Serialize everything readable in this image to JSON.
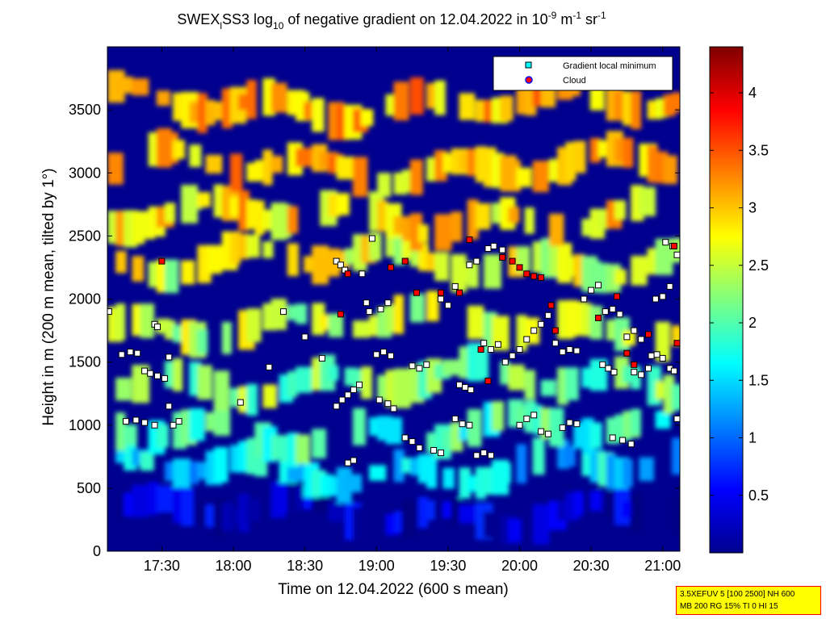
{
  "chart_data": {
    "type": "heatmap",
    "title_parts": {
      "pre": "SWEX",
      "sub1": "l",
      "mid": "SS3 log",
      "sub2": "10",
      "post": " of negative gradient on 12.04.2022 in 10",
      "sup1": "-9",
      "unit1": " m",
      "sup2": "-1",
      "unit2": " sr",
      "sup3": "-1"
    },
    "xlabel": "Time on 12.04.2022 (600 s mean)",
    "ylabel": "Height in m (200 m mean, tilted by 1°)",
    "x_ticks": [
      "17:30",
      "18:00",
      "18:30",
      "19:00",
      "19:30",
      "20:00",
      "20:30",
      "21:00"
    ],
    "x_range_hours": [
      17.12,
      21.12
    ],
    "y_ticks": [
      0,
      500,
      1000,
      1500,
      2000,
      2500,
      3000,
      3500
    ],
    "ylim": [
      0,
      4000
    ],
    "colorbar": {
      "ticks": [
        0.5,
        1,
        1.5,
        2,
        2.5,
        3,
        3.5,
        4
      ],
      "range": [
        0,
        4.4
      ],
      "colormap": "jet"
    },
    "legend": {
      "placement": "top-right",
      "entries": [
        {
          "label": "Gradient local minimum",
          "marker": "square",
          "color": "#00ffff"
        },
        {
          "label": "Cloud",
          "marker": "circle",
          "color": "#ff0000"
        }
      ]
    },
    "layers": [
      {
        "height": 300,
        "value": 0.3
      },
      {
        "height": 650,
        "value": 1.5
      },
      {
        "height": 950,
        "value": 1.9
      },
      {
        "height": 1350,
        "value": 2.2
      },
      {
        "height": 1800,
        "value": 2.5
      },
      {
        "height": 2300,
        "value": 2.6
      },
      {
        "height": 2650,
        "value": 2.9
      },
      {
        "height": 3050,
        "value": 3.0
      },
      {
        "height": 3550,
        "value": 3.1
      }
    ],
    "gradient_minima": [
      {
        "t": 17.13,
        "h": 1900
      },
      {
        "t": 17.22,
        "h": 1560
      },
      {
        "t": 17.28,
        "h": 1580
      },
      {
        "t": 17.33,
        "h": 1570
      },
      {
        "t": 17.25,
        "h": 1030
      },
      {
        "t": 17.32,
        "h": 1040
      },
      {
        "t": 17.38,
        "h": 1020
      },
      {
        "t": 17.45,
        "h": 1000
      },
      {
        "t": 17.38,
        "h": 1430
      },
      {
        "t": 17.42,
        "h": 1410
      },
      {
        "t": 17.47,
        "h": 1390
      },
      {
        "t": 17.52,
        "h": 1370
      },
      {
        "t": 17.45,
        "h": 1800
      },
      {
        "t": 17.47,
        "h": 1780
      },
      {
        "t": 17.55,
        "h": 1540
      },
      {
        "t": 17.55,
        "h": 1150
      },
      {
        "t": 17.58,
        "h": 1000
      },
      {
        "t": 17.62,
        "h": 1030
      },
      {
        "t": 18.72,
        "h": 2300
      },
      {
        "t": 18.75,
        "h": 2270
      },
      {
        "t": 18.78,
        "h": 2230
      },
      {
        "t": 18.72,
        "h": 1150
      },
      {
        "t": 18.76,
        "h": 1200
      },
      {
        "t": 18.8,
        "h": 1240
      },
      {
        "t": 18.84,
        "h": 1280
      },
      {
        "t": 18.88,
        "h": 1320
      },
      {
        "t": 18.8,
        "h": 700
      },
      {
        "t": 18.84,
        "h": 720
      },
      {
        "t": 18.9,
        "h": 2200
      },
      {
        "t": 18.93,
        "h": 1970
      },
      {
        "t": 18.95,
        "h": 1900
      },
      {
        "t": 19.0,
        "h": 1560
      },
      {
        "t": 19.05,
        "h": 1580
      },
      {
        "t": 19.1,
        "h": 1550
      },
      {
        "t": 19.02,
        "h": 1200
      },
      {
        "t": 19.08,
        "h": 1170
      },
      {
        "t": 19.12,
        "h": 1130
      },
      {
        "t": 18.97,
        "h": 2480
      },
      {
        "t": 19.03,
        "h": 1920
      },
      {
        "t": 19.08,
        "h": 1970
      },
      {
        "t": 19.25,
        "h": 1470
      },
      {
        "t": 19.3,
        "h": 1450
      },
      {
        "t": 19.35,
        "h": 1480
      },
      {
        "t": 19.2,
        "h": 900
      },
      {
        "t": 19.25,
        "h": 870
      },
      {
        "t": 19.3,
        "h": 820
      },
      {
        "t": 19.4,
        "h": 800
      },
      {
        "t": 19.45,
        "h": 780
      },
      {
        "t": 19.45,
        "h": 2000
      },
      {
        "t": 19.5,
        "h": 1950
      },
      {
        "t": 19.55,
        "h": 2100
      },
      {
        "t": 19.58,
        "h": 1320
      },
      {
        "t": 19.62,
        "h": 1300
      },
      {
        "t": 19.66,
        "h": 1280
      },
      {
        "t": 19.55,
        "h": 1050
      },
      {
        "t": 19.6,
        "h": 1010
      },
      {
        "t": 19.65,
        "h": 1000
      },
      {
        "t": 19.7,
        "h": 760
      },
      {
        "t": 19.75,
        "h": 780
      },
      {
        "t": 19.8,
        "h": 760
      },
      {
        "t": 19.65,
        "h": 2270
      },
      {
        "t": 19.7,
        "h": 2300
      },
      {
        "t": 19.78,
        "h": 2400
      },
      {
        "t": 19.82,
        "h": 2420
      },
      {
        "t": 19.88,
        "h": 2390
      },
      {
        "t": 19.75,
        "h": 1650
      },
      {
        "t": 19.8,
        "h": 1600
      },
      {
        "t": 19.85,
        "h": 1640
      },
      {
        "t": 19.9,
        "h": 1500
      },
      {
        "t": 19.95,
        "h": 1550
      },
      {
        "t": 20.0,
        "h": 1600
      },
      {
        "t": 20.05,
        "h": 1680
      },
      {
        "t": 20.1,
        "h": 1750
      },
      {
        "t": 20.15,
        "h": 1800
      },
      {
        "t": 20.2,
        "h": 1870
      },
      {
        "t": 20.25,
        "h": 1650
      },
      {
        "t": 20.3,
        "h": 1580
      },
      {
        "t": 20.0,
        "h": 1000
      },
      {
        "t": 20.05,
        "h": 1050
      },
      {
        "t": 20.1,
        "h": 1080
      },
      {
        "t": 20.15,
        "h": 950
      },
      {
        "t": 20.2,
        "h": 930
      },
      {
        "t": 20.3,
        "h": 980
      },
      {
        "t": 20.35,
        "h": 1020
      },
      {
        "t": 20.4,
        "h": 1010
      },
      {
        "t": 20.35,
        "h": 1600
      },
      {
        "t": 20.4,
        "h": 1590
      },
      {
        "t": 20.45,
        "h": 2000
      },
      {
        "t": 20.5,
        "h": 2070
      },
      {
        "t": 20.55,
        "h": 2110
      },
      {
        "t": 20.58,
        "h": 1480
      },
      {
        "t": 20.62,
        "h": 1450
      },
      {
        "t": 20.66,
        "h": 1420
      },
      {
        "t": 20.6,
        "h": 1900
      },
      {
        "t": 20.65,
        "h": 1920
      },
      {
        "t": 20.7,
        "h": 1880
      },
      {
        "t": 20.65,
        "h": 900
      },
      {
        "t": 20.72,
        "h": 880
      },
      {
        "t": 20.78,
        "h": 850
      },
      {
        "t": 20.75,
        "h": 1700
      },
      {
        "t": 20.8,
        "h": 1750
      },
      {
        "t": 20.85,
        "h": 1680
      },
      {
        "t": 20.8,
        "h": 1420
      },
      {
        "t": 20.85,
        "h": 1400
      },
      {
        "t": 20.9,
        "h": 1450
      },
      {
        "t": 20.92,
        "h": 1550
      },
      {
        "t": 20.96,
        "h": 1560
      },
      {
        "t": 21.0,
        "h": 1530
      },
      {
        "t": 20.95,
        "h": 2000
      },
      {
        "t": 21.0,
        "h": 2020
      },
      {
        "t": 21.05,
        "h": 2100
      },
      {
        "t": 21.02,
        "h": 2450
      },
      {
        "t": 21.07,
        "h": 2420
      },
      {
        "t": 21.1,
        "h": 2350
      },
      {
        "t": 21.05,
        "h": 1450
      },
      {
        "t": 21.08,
        "h": 1430
      },
      {
        "t": 21.1,
        "h": 1050
      },
      {
        "t": 18.05,
        "h": 1180
      },
      {
        "t": 18.25,
        "h": 1460
      },
      {
        "t": 18.35,
        "h": 1900
      },
      {
        "t": 18.5,
        "h": 1700
      },
      {
        "t": 18.62,
        "h": 1530
      }
    ],
    "clouds": [
      {
        "t": 17.5,
        "h": 2300
      },
      {
        "t": 18.8,
        "h": 2200
      },
      {
        "t": 18.75,
        "h": 1880
      },
      {
        "t": 19.1,
        "h": 2250
      },
      {
        "t": 19.2,
        "h": 2300
      },
      {
        "t": 19.28,
        "h": 2050
      },
      {
        "t": 19.45,
        "h": 2050
      },
      {
        "t": 19.58,
        "h": 2050
      },
      {
        "t": 19.65,
        "h": 2470
      },
      {
        "t": 19.73,
        "h": 1600
      },
      {
        "t": 19.78,
        "h": 1350
      },
      {
        "t": 19.88,
        "h": 2330
      },
      {
        "t": 19.95,
        "h": 2300
      },
      {
        "t": 20.0,
        "h": 2250
      },
      {
        "t": 20.05,
        "h": 2200
      },
      {
        "t": 20.1,
        "h": 2180
      },
      {
        "t": 20.15,
        "h": 2170
      },
      {
        "t": 20.22,
        "h": 1950
      },
      {
        "t": 20.25,
        "h": 1750
      },
      {
        "t": 20.55,
        "h": 1850
      },
      {
        "t": 20.68,
        "h": 2020
      },
      {
        "t": 20.75,
        "h": 1570
      },
      {
        "t": 20.8,
        "h": 1480
      },
      {
        "t": 20.9,
        "h": 1720
      },
      {
        "t": 21.08,
        "h": 2420
      },
      {
        "t": 21.1,
        "h": 1650
      }
    ]
  },
  "param_box": {
    "line1": "3.5XEFUV 5 [100 2500] NH 600",
    "line2": "MB 200 RG 15% TI 0 HI 15"
  }
}
